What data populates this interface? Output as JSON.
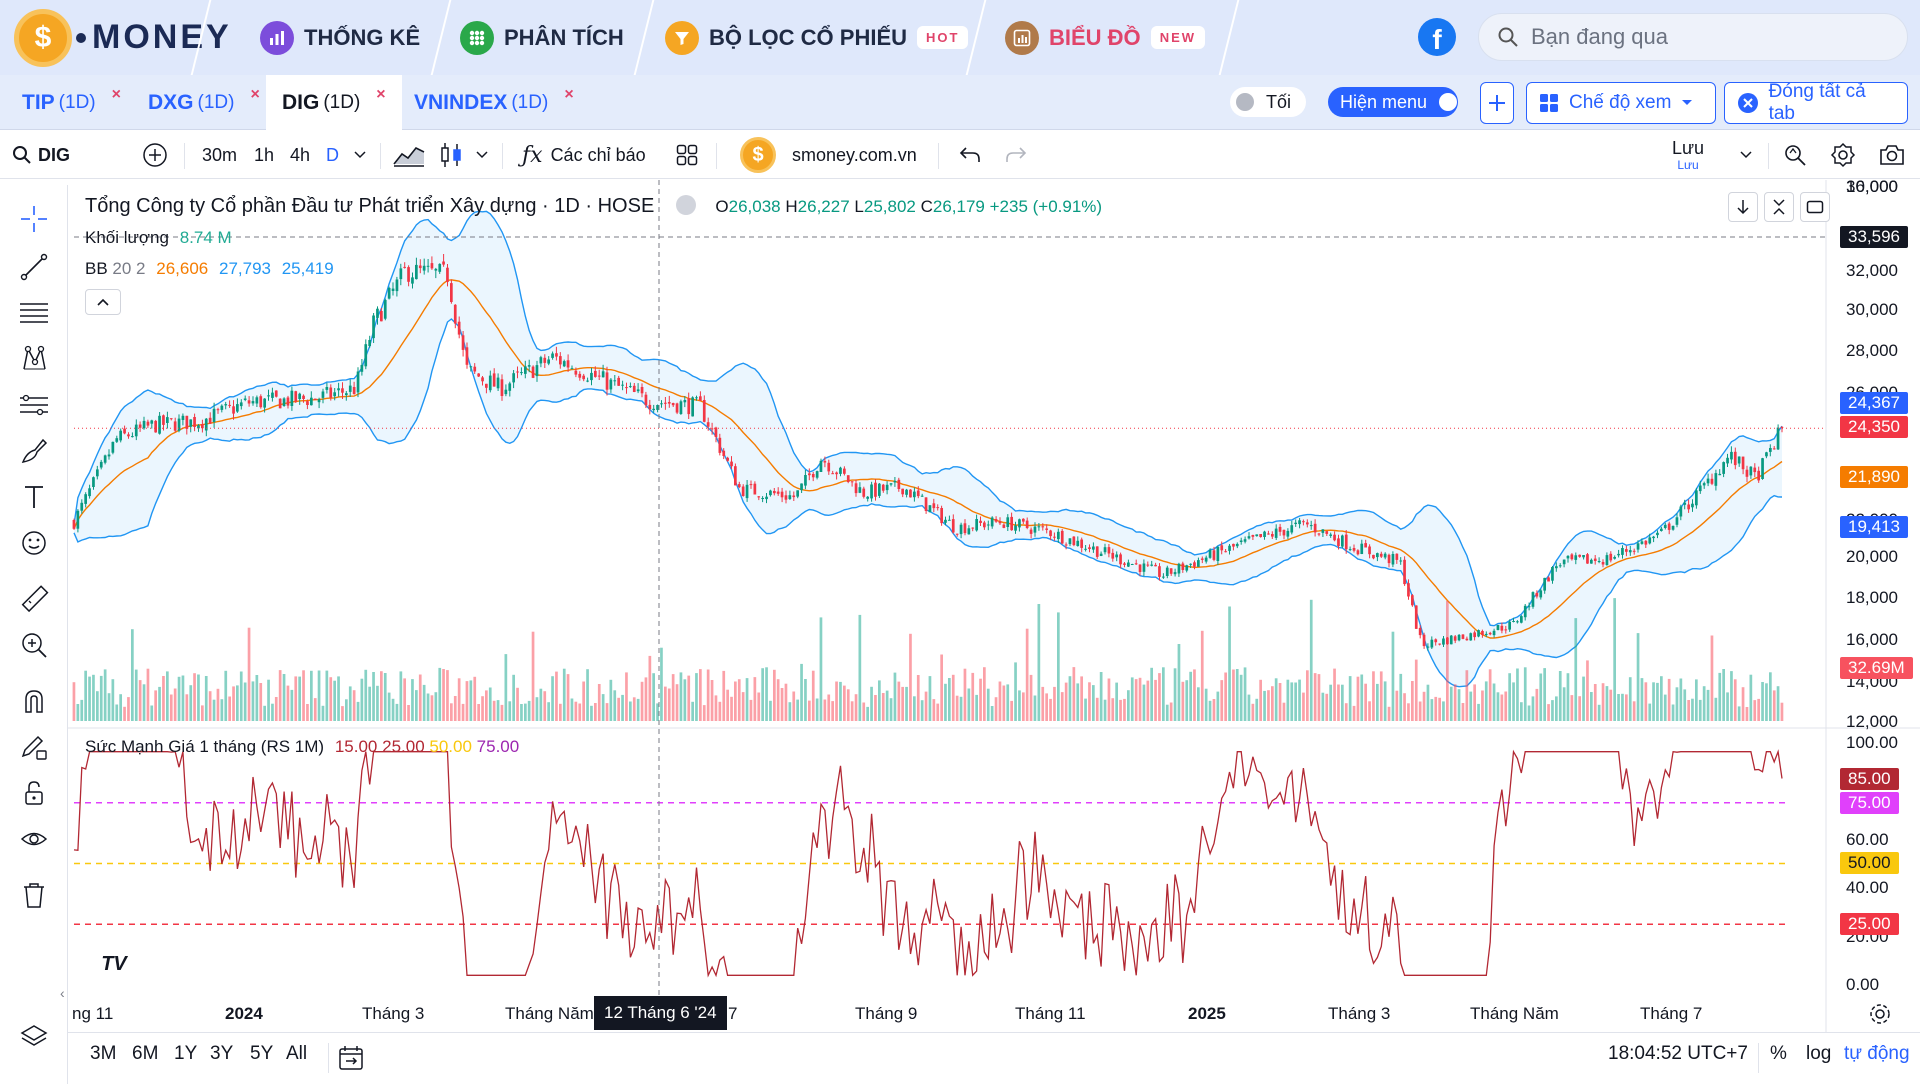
{
  "nav": {
    "logo_text": "MONEY",
    "items": [
      {
        "label": "THỐNG KÊ",
        "icon": "bar-chart-icon",
        "color": "#7c4ddb"
      },
      {
        "label": "PHÂN TÍCH",
        "icon": "grid-dots-icon",
        "color": "#2aa84a"
      },
      {
        "label": "BỘ LỌC CỔ PHIẾU",
        "icon": "filter-icon",
        "color": "#f5a623",
        "badge": "HOT"
      },
      {
        "label": "BIỂU ĐỒ",
        "icon": "chart-box-icon",
        "color": "#b07a4a",
        "badge": "NEW",
        "active": true
      }
    ],
    "search_placeholder": "Bạn đang qua"
  },
  "tabs": [
    {
      "symbol": "TIP",
      "tf": "(1D)",
      "close": "×"
    },
    {
      "symbol": "DXG",
      "tf": "(1D)",
      "close": "×"
    },
    {
      "symbol": "DIG",
      "tf": "(1D)",
      "close": "×",
      "active": true
    },
    {
      "symbol": "VNINDEX",
      "tf": "(1D)",
      "close": "×"
    }
  ],
  "tab_controls": {
    "dark_label": "Tối",
    "menu_label": "Hiện menu",
    "view_mode_label": "Chế độ xem",
    "close_all_label": "Đóng tất cả tab"
  },
  "toolbar": {
    "symbol": "DIG",
    "intervals": [
      "30m",
      "1h",
      "4h",
      "D"
    ],
    "indicators_label": "Các chỉ báo",
    "site": "smoney.com.vn",
    "save_label": "Lưu",
    "save_sub": "Lưu"
  },
  "legend": {
    "title": "Tổng Công ty Cổ phần Đầu tư Phát triển Xây dựng · 1D · HOSE",
    "o_label": "O",
    "o": "26,038",
    "h_label": "H",
    "h": "26,227",
    "l_label": "L",
    "l": "25,802",
    "c_label": "C",
    "c": "26,179",
    "change": "+235 (+0.91%)",
    "volume_label": "Khối lượng",
    "volume": "8.74 M",
    "bb_label": "BB",
    "bb_params": "20 2",
    "bb_basis": "26,606",
    "bb_upper": "27,793",
    "bb_lower": "25,419",
    "rs_label": "Sức Mạnh Giá 1 tháng (RS 1M)",
    "rs_levels": [
      "15.00",
      "25.00",
      "50.00",
      "75.00"
    ]
  },
  "price_axis": {
    "ticks": [
      "36,000",
      "32,000",
      "30,000",
      "28,000",
      "26,000",
      "22,000",
      "20,000",
      "18,000",
      "16,000",
      "14,000",
      "12,000",
      "10,000"
    ],
    "labels": [
      {
        "text": "33,596",
        "color": "#131722"
      },
      {
        "text": "24,367",
        "color": "#2962ff"
      },
      {
        "text": "24,350",
        "color": "#f23645"
      },
      {
        "text": "21,890",
        "color": "#f57c00"
      },
      {
        "text": "19,413",
        "color": "#2962ff"
      },
      {
        "text": "32.69M",
        "color": "#f7525f"
      }
    ]
  },
  "rs_axis": {
    "ticks": [
      "100.00",
      "60.00",
      "40.00",
      "20.00",
      "0.00"
    ],
    "labels": [
      {
        "text": "85.00",
        "color": "#b22833"
      },
      {
        "text": "75.00",
        "color": "#e040fb"
      },
      {
        "text": "50.00",
        "color": "#f9c80e"
      },
      {
        "text": "25.00",
        "color": "#f23645"
      }
    ]
  },
  "time_axis": [
    "ng 11",
    "2024",
    "Tháng 3",
    "Tháng Năm",
    "7",
    "Tháng 9",
    "Tháng 11",
    "2025",
    "Tháng 3",
    "Tháng Năm",
    "Tháng 7"
  ],
  "crosshair_date": "12 Tháng 6 '24",
  "bottom": {
    "ranges": [
      "3M",
      "6M",
      "1Y",
      "3Y",
      "5Y",
      "All"
    ],
    "time": "18:04:52 UTC+7",
    "percent": "%",
    "log": "log",
    "auto": "tự động"
  },
  "chart_data": {
    "type": "candlestick",
    "title": "Tổng Công ty Cổ phần Đầu tư Phát triển Xây dựng · 1D · HOSE",
    "price_range": [
      10000,
      36000
    ],
    "close_path": [
      [
        "2023-11-15",
        19800
      ],
      [
        "2023-12-01",
        23800
      ],
      [
        "2023-12-15",
        24500
      ],
      [
        "2024-01-02",
        24700
      ],
      [
        "2024-01-20",
        25600
      ],
      [
        "2024-02-15",
        25800
      ],
      [
        "2024-03-01",
        26300
      ],
      [
        "2024-03-08",
        29500
      ],
      [
        "2024-03-20",
        32000
      ],
      [
        "2024-04-05",
        31800
      ],
      [
        "2024-04-12",
        27200
      ],
      [
        "2024-04-25",
        26300
      ],
      [
        "2024-05-15",
        27800
      ],
      [
        "2024-06-01",
        26800
      ],
      [
        "2024-06-20",
        25700
      ],
      [
        "2024-07-10",
        25400
      ],
      [
        "2024-07-25",
        21400
      ],
      [
        "2024-08-15",
        21000
      ],
      [
        "2024-08-25",
        22900
      ],
      [
        "2024-09-10",
        21200
      ],
      [
        "2024-09-25",
        21500
      ],
      [
        "2024-10-15",
        19500
      ],
      [
        "2024-11-01",
        19800
      ],
      [
        "2024-11-20",
        19300
      ],
      [
        "2024-12-10",
        18300
      ],
      [
        "2025-01-02",
        17200
      ],
      [
        "2025-01-15",
        17900
      ],
      [
        "2025-02-05",
        18900
      ],
      [
        "2025-02-25",
        19700
      ],
      [
        "2025-03-15",
        18600
      ],
      [
        "2025-04-02",
        17800
      ],
      [
        "2025-04-10",
        13800
      ],
      [
        "2025-04-25",
        14200
      ],
      [
        "2025-05-15",
        14800
      ],
      [
        "2025-06-01",
        17800
      ],
      [
        "2025-06-20",
        18000
      ],
      [
        "2025-07-10",
        19200
      ],
      [
        "2025-07-25",
        21300
      ],
      [
        "2025-08-05",
        23000
      ],
      [
        "2025-08-15",
        21900
      ],
      [
        "2025-08-25",
        24350
      ]
    ],
    "rs_range": [
      0,
      100
    ],
    "rs_levels": [
      15,
      25,
      50,
      75
    ],
    "last_rs": 85
  }
}
